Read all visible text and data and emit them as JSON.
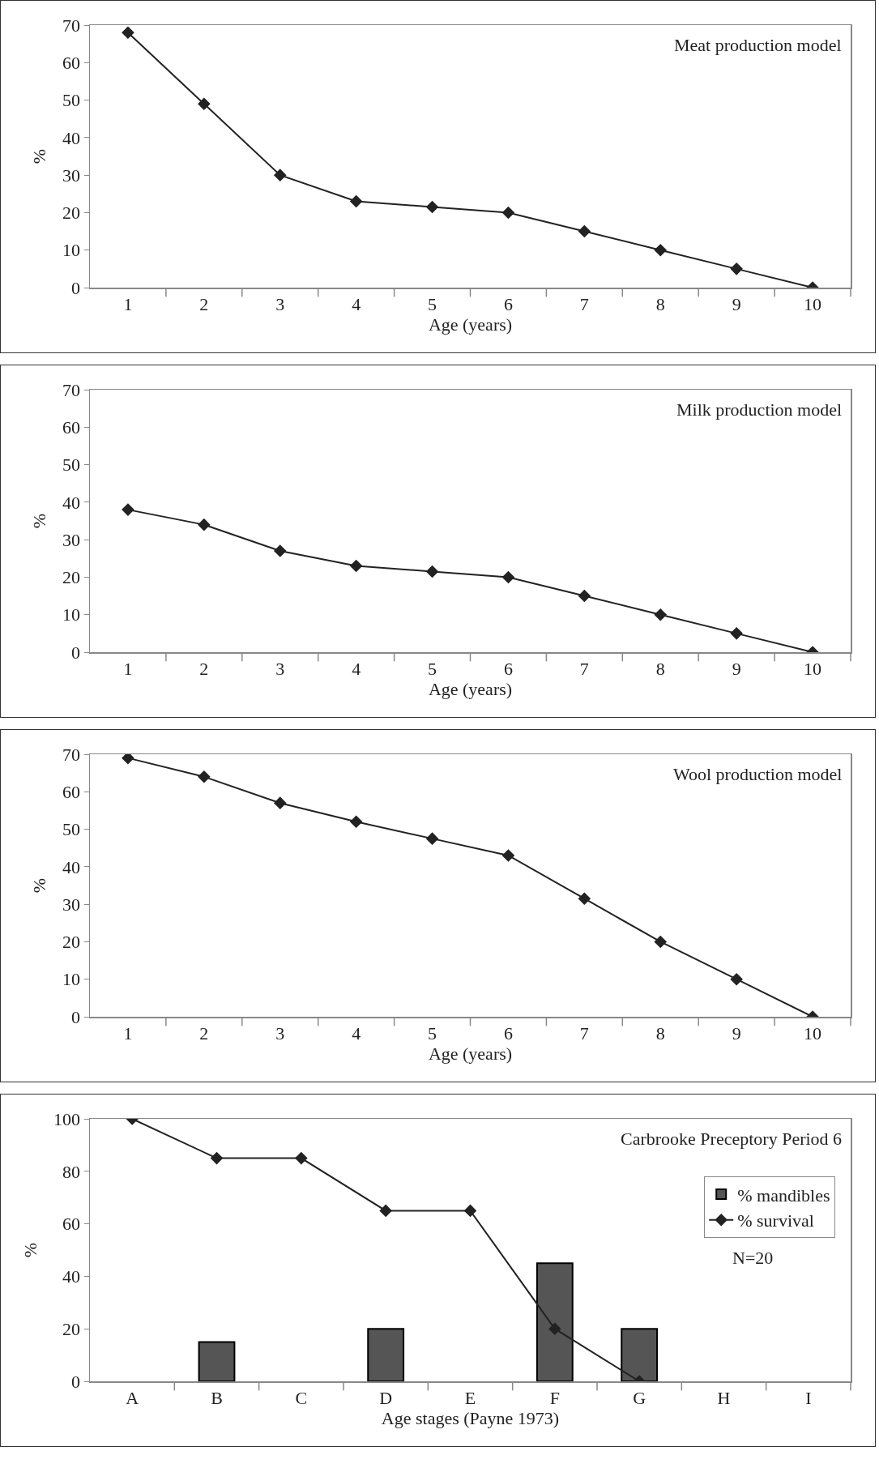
{
  "chart_data": [
    {
      "type": "line",
      "title": "Meat production model",
      "xlabel": "Age (years)",
      "ylabel": "%",
      "categories": [
        "1",
        "2",
        "3",
        "4",
        "5",
        "6",
        "7",
        "8",
        "9",
        "10"
      ],
      "series": [
        {
          "color": "#222222",
          "values": [
            68,
            49,
            30,
            23,
            21.5,
            20,
            15,
            10,
            5,
            0
          ]
        }
      ],
      "ylim": [
        0,
        70
      ],
      "yticks": [
        0,
        10,
        20,
        30,
        40,
        50,
        60,
        70
      ],
      "grid": false,
      "legend": false,
      "marker": "diamond",
      "line_style": "solid"
    },
    {
      "type": "line",
      "title": "Milk production model",
      "xlabel": "Age (years)",
      "ylabel": "%",
      "categories": [
        "1",
        "2",
        "3",
        "4",
        "5",
        "6",
        "7",
        "8",
        "9",
        "10"
      ],
      "series": [
        {
          "color": "#222222",
          "values": [
            38,
            34,
            27,
            23,
            21.5,
            20,
            15,
            10,
            5,
            0
          ]
        }
      ],
      "ylim": [
        0,
        70
      ],
      "yticks": [
        0,
        10,
        20,
        30,
        40,
        50,
        60,
        70
      ],
      "grid": false,
      "legend": false,
      "marker": "diamond",
      "line_style": "solid"
    },
    {
      "type": "line",
      "title": "Wool production model",
      "xlabel": "Age (years)",
      "ylabel": "%",
      "categories": [
        "1",
        "2",
        "3",
        "4",
        "5",
        "6",
        "7",
        "8",
        "9",
        "10"
      ],
      "series": [
        {
          "color": "#222222",
          "values": [
            69,
            64,
            57,
            52,
            47.5,
            43,
            31.5,
            20,
            10,
            0
          ]
        }
      ],
      "ylim": [
        0,
        70
      ],
      "yticks": [
        0,
        10,
        20,
        30,
        40,
        50,
        60,
        70
      ],
      "grid": false,
      "legend": false,
      "marker": "diamond",
      "line_style": "solid"
    },
    {
      "type": "bar",
      "title": "Carbrooke Preceptory Period 6",
      "xlabel": "Age stages (Payne 1973)",
      "ylabel": "%",
      "categories": [
        "A",
        "B",
        "C",
        "D",
        "E",
        "F",
        "G",
        "H",
        "I"
      ],
      "series": [
        {
          "name": "% mandibles",
          "color": "#555555",
          "values": [
            null,
            15,
            null,
            20,
            null,
            45,
            20,
            null,
            null
          ]
        },
        {
          "name": "% survival",
          "type": "line",
          "color": "#222222",
          "values": [
            100,
            85,
            85,
            65,
            65,
            20,
            0,
            null,
            null
          ]
        }
      ],
      "annotations": [
        "N=20"
      ],
      "ylim": [
        0,
        100
      ],
      "yticks": [
        0,
        20,
        40,
        60,
        80,
        100
      ],
      "grid": false,
      "legend": "top right",
      "marker": "diamond",
      "line_style": "solid"
    }
  ]
}
